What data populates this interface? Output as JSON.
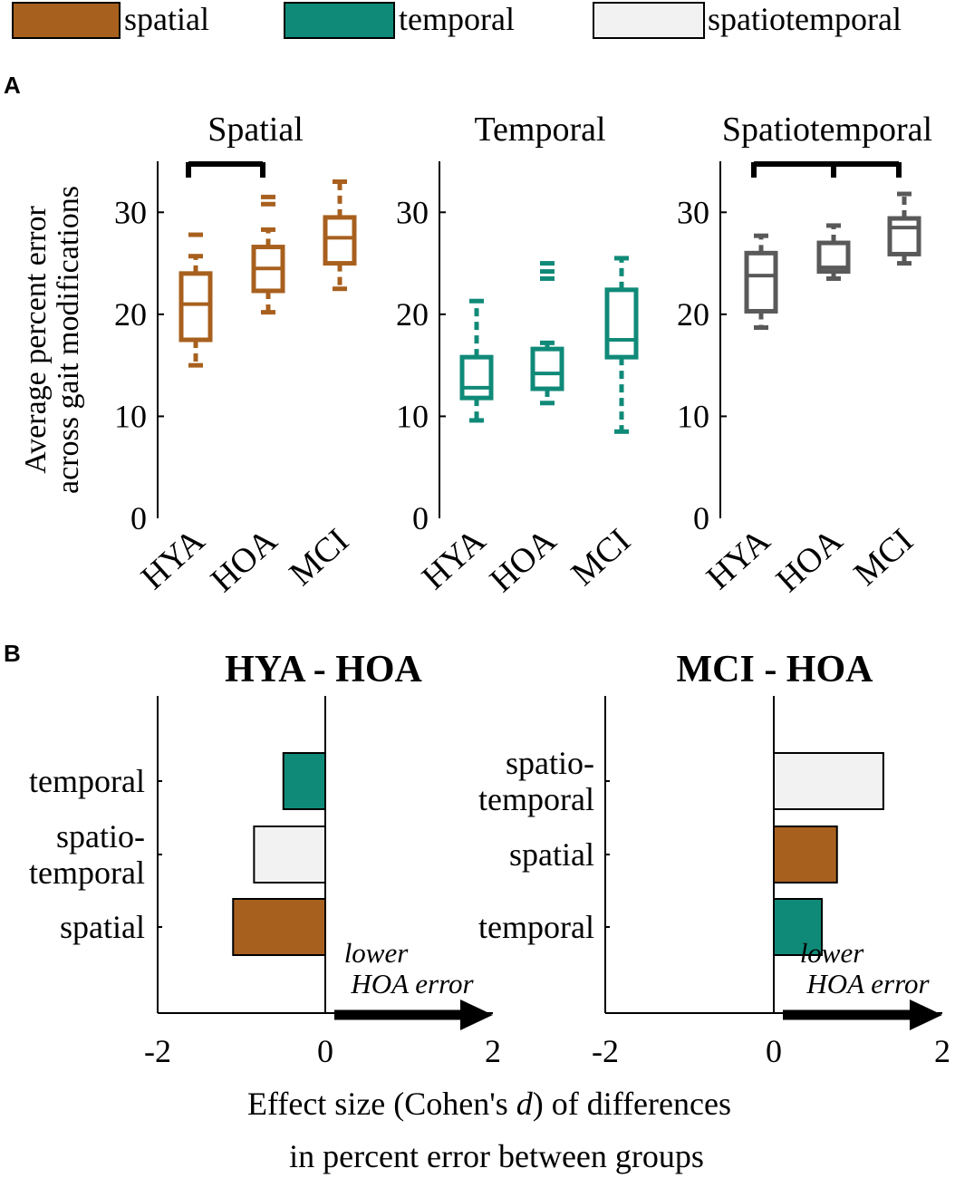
{
  "colors": {
    "spatial": "#A8601E",
    "temporal": "#108A78",
    "spatiotemporal_box": "#595959",
    "spatiotemporal_bar": "#F2F2F2",
    "axis": "#000000"
  },
  "legend": {
    "items": [
      {
        "label": "spatial",
        "color_key": "spatial"
      },
      {
        "label": "temporal",
        "color_key": "temporal"
      },
      {
        "label": "spatiotemporal",
        "color_key": "spatiotemporal_bar"
      }
    ]
  },
  "panel_labels": {
    "a": "A",
    "b": "B"
  },
  "panel_a": {
    "ylabel_line1": "Average percent error",
    "ylabel_line2": "across gait modifications"
  },
  "panel_b": {
    "xlabel_line1_pre": "Effect size (Cohen's ",
    "xlabel_line1_italic": "d",
    "xlabel_line1_post": ") of differences",
    "xlabel_line2": "in percent error between groups",
    "arrow_text_line1": "lower",
    "arrow_text_line2": "HOA error"
  },
  "chart_data": [
    {
      "type": "box",
      "title": "Spatial",
      "color_key": "spatial",
      "categories": [
        "HYA",
        "HOA",
        "MCI"
      ],
      "yticks": [
        "0",
        "10",
        "20",
        "30"
      ],
      "ylim": [
        0,
        35
      ],
      "boxes": [
        {
          "whisker_low": 15,
          "q1": 17.5,
          "median": 21,
          "q3": 24,
          "whisker_high": 25.7,
          "outliers": [
            27.8
          ]
        },
        {
          "whisker_low": 20.2,
          "q1": 22.3,
          "median": 24.5,
          "q3": 26.6,
          "whisker_high": 28.3,
          "outliers": [
            30.8,
            31.5
          ]
        },
        {
          "whisker_low": 22.5,
          "q1": 25,
          "median": 27.5,
          "q3": 29.5,
          "whisker_high": 33,
          "outliers": []
        }
      ],
      "significance_brackets": [
        {
          "from": "HYA",
          "to": "HOA"
        }
      ]
    },
    {
      "type": "box",
      "title": "Temporal",
      "color_key": "temporal",
      "categories": [
        "HYA",
        "HOA",
        "MCI"
      ],
      "yticks": [
        "0",
        "10",
        "20",
        "30"
      ],
      "ylim": [
        0,
        35
      ],
      "boxes": [
        {
          "whisker_low": 9.6,
          "q1": 11.8,
          "median": 12.8,
          "q3": 15.8,
          "whisker_high": 21.3,
          "outliers": []
        },
        {
          "whisker_low": 11.3,
          "q1": 12.7,
          "median": 14.2,
          "q3": 16.6,
          "whisker_high": 17.2,
          "outliers": [
            23.5,
            24.2,
            25
          ]
        },
        {
          "whisker_low": 8.5,
          "q1": 15.8,
          "median": 17.5,
          "q3": 22.4,
          "whisker_high": 25.5,
          "outliers": []
        }
      ],
      "significance_brackets": []
    },
    {
      "type": "box",
      "title": "Spatiotemporal",
      "color_key": "spatiotemporal_box",
      "categories": [
        "HYA",
        "HOA",
        "MCI"
      ],
      "yticks": [
        "0",
        "10",
        "20",
        "30"
      ],
      "ylim": [
        0,
        35
      ],
      "boxes": [
        {
          "whisker_low": 18.7,
          "q1": 20.3,
          "median": 23.8,
          "q3": 26,
          "whisker_high": 27.7,
          "outliers": []
        },
        {
          "whisker_low": 23.5,
          "q1": 24.2,
          "median": 24.6,
          "q3": 27,
          "whisker_high": 28.7,
          "outliers": []
        },
        {
          "whisker_low": 25,
          "q1": 25.9,
          "median": 28.5,
          "q3": 29.4,
          "whisker_high": 31.8,
          "outliers": []
        }
      ],
      "significance_brackets": [
        {
          "from": "HYA",
          "to": "MCI",
          "middle_tick": "HOA"
        }
      ]
    },
    {
      "type": "bar",
      "orientation": "horizontal",
      "title": "HYA - HOA",
      "xlim": [
        -2,
        2
      ],
      "xticks": [
        "-2",
        "0",
        "2"
      ],
      "bars": [
        {
          "label_lines": [
            "temporal"
          ],
          "value": -0.5,
          "color_key": "temporal"
        },
        {
          "label_lines": [
            "spatio-",
            "temporal"
          ],
          "value": -0.85,
          "color_key": "spatiotemporal_bar"
        },
        {
          "label_lines": [
            "spatial"
          ],
          "value": -1.1,
          "color_key": "spatial"
        }
      ]
    },
    {
      "type": "bar",
      "orientation": "horizontal",
      "title": "MCI - HOA",
      "xlim": [
        -2,
        2
      ],
      "xticks": [
        "-2",
        "0",
        "2"
      ],
      "bars": [
        {
          "label_lines": [
            "spatio-",
            "temporal"
          ],
          "value": 1.3,
          "color_key": "spatiotemporal_bar"
        },
        {
          "label_lines": [
            "spatial"
          ],
          "value": 0.75,
          "color_key": "spatial"
        },
        {
          "label_lines": [
            "temporal"
          ],
          "value": 0.57,
          "color_key": "temporal"
        }
      ]
    }
  ]
}
